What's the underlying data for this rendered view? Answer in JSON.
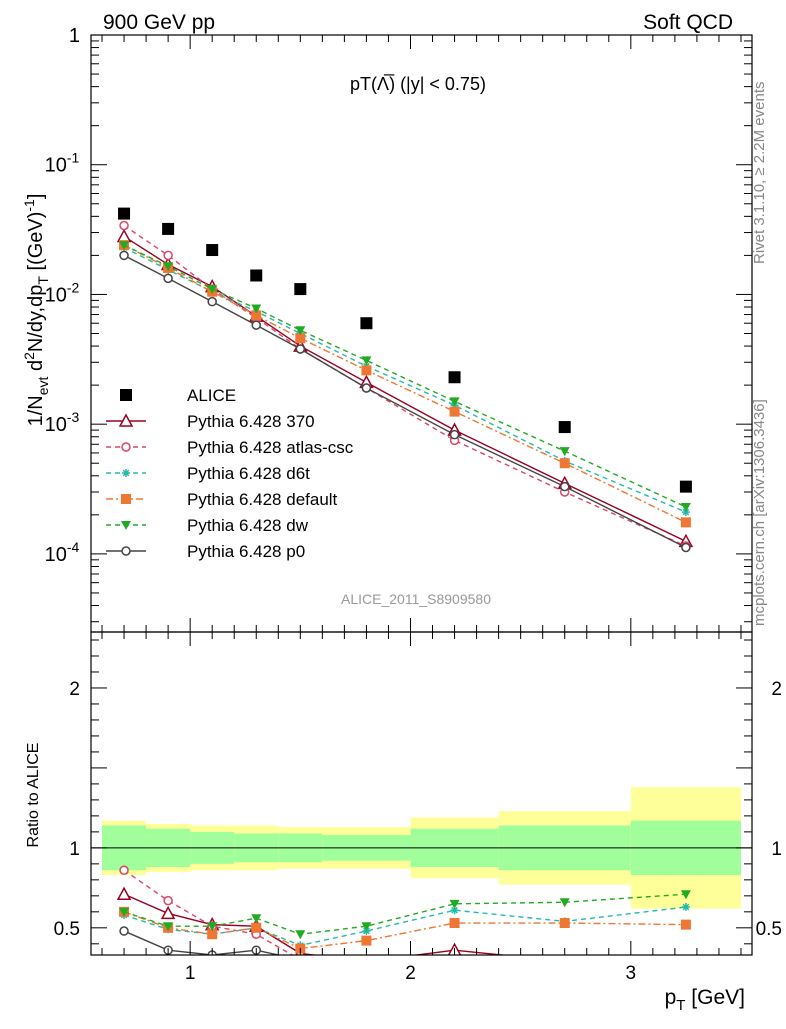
{
  "header": {
    "left": "900 GeV pp",
    "right": "Soft QCD"
  },
  "side_labels": {
    "rivet": "Rivet 3.1.10, ≥ 2.2M events",
    "mcplots": "mcplots.cern.ch [arXiv:1306.3436]"
  },
  "analysis_tag": "ALICE_2011_S8909580",
  "chart_data": [
    {
      "type": "scatter",
      "panel": "main",
      "title": "pT(Λ̅) (|y| < 0.75)",
      "ylabel": "1/N_evt d²N/dy,dp_T [(GeV)⁻¹]",
      "y_scale": "log",
      "ylim": [
        2.5e-05,
        1
      ],
      "xlim": [
        0.55,
        3.55
      ],
      "y_ticks": [
        "1",
        "10^-1",
        "10^-2",
        "10^-3",
        "10^-4"
      ],
      "legend_position": "bottom-left",
      "x": [
        0.7,
        0.9,
        1.1,
        1.3,
        1.5,
        1.8,
        2.2,
        2.7,
        3.25
      ],
      "series": [
        {
          "name": "ALICE",
          "color": "#000000",
          "marker": "square-filled",
          "line": "none",
          "values": [
            0.042,
            0.032,
            0.022,
            0.014,
            0.011,
            0.006,
            0.0023,
            0.00095,
            0.00033
          ]
        },
        {
          "name": "Pythia 6.428 370",
          "color": "#990022",
          "marker": "triangle-open",
          "line": "solid",
          "values": [
            0.028,
            0.017,
            0.0115,
            0.0068,
            0.004,
            0.0021,
            0.0009,
            0.00035,
            0.000125
          ]
        },
        {
          "name": "Pythia 6.428 atlas-csc",
          "color": "#dd4466",
          "marker": "circle-open",
          "line": "dashed",
          "values": [
            0.034,
            0.02,
            0.011,
            0.0066,
            0.0038,
            0.0019,
            0.00075,
            0.0003,
            0.000115
          ]
        },
        {
          "name": "Pythia 6.428 d6t",
          "color": "#22bbaa",
          "marker": "star",
          "line": "dashed",
          "values": [
            0.023,
            0.0155,
            0.0105,
            0.0074,
            0.005,
            0.0028,
            0.0014,
            0.00052,
            0.00021
          ]
        },
        {
          "name": "Pythia 6.428 default",
          "color": "#ee7733",
          "marker": "square-filled",
          "line": "dashdot",
          "values": [
            0.024,
            0.016,
            0.0105,
            0.0069,
            0.0046,
            0.0026,
            0.00125,
            0.0005,
            0.000175
          ]
        },
        {
          "name": "Pythia 6.428 dw",
          "color": "#22aa22",
          "marker": "triangle-down-filled",
          "line": "dashed",
          "values": [
            0.024,
            0.0165,
            0.011,
            0.0078,
            0.0053,
            0.0031,
            0.0015,
            0.00062,
            0.00023
          ]
        },
        {
          "name": "Pythia 6.428 p0",
          "color": "#444444",
          "marker": "circle-open",
          "line": "solid",
          "values": [
            0.02,
            0.0133,
            0.0088,
            0.0058,
            0.0038,
            0.0019,
            0.00083,
            0.00033,
            0.000112
          ]
        }
      ]
    },
    {
      "type": "line",
      "panel": "ratio",
      "ylabel": "Ratio to ALICE",
      "xlabel": "p_T [GeV]",
      "ylim": [
        0.33,
        2.35
      ],
      "xlim": [
        0.55,
        3.55
      ],
      "x_ticks": [
        "1",
        "2",
        "3"
      ],
      "y_ticks": [
        "0.5",
        "1",
        "2"
      ],
      "reference": 1,
      "bins": [
        0.6,
        0.8,
        1.0,
        1.2,
        1.4,
        1.6,
        2.0,
        2.4,
        3.0,
        3.5
      ],
      "band_inner": [
        0.14,
        0.12,
        0.1,
        0.09,
        0.09,
        0.08,
        0.12,
        0.14,
        0.17
      ],
      "band_outer": [
        0.17,
        0.15,
        0.14,
        0.14,
        0.13,
        0.13,
        0.19,
        0.23,
        0.38
      ],
      "band_colors": {
        "inner": "#a0ff9a",
        "outer": "#ffff99"
      },
      "x": [
        0.7,
        0.9,
        1.1,
        1.3,
        1.5,
        1.8,
        2.2,
        2.7,
        3.25
      ],
      "series": [
        {
          "name": "Pythia 6.428 370",
          "color": "#990022",
          "marker": "triangle-open",
          "line": "solid",
          "values": [
            0.71,
            0.59,
            0.52,
            0.51,
            0.34,
            0.29,
            0.36,
            0.29,
            0.28
          ]
        },
        {
          "name": "Pythia 6.428 atlas-csc",
          "color": "#dd4466",
          "marker": "circle-open",
          "line": "dashed",
          "values": [
            0.86,
            0.67,
            0.51,
            0.46,
            0.3,
            0.28,
            0.3,
            0.28,
            0.27
          ]
        },
        {
          "name": "Pythia 6.428 d6t",
          "color": "#22bbaa",
          "marker": "star",
          "line": "dashed",
          "values": [
            0.58,
            0.49,
            0.46,
            0.5,
            0.39,
            0.48,
            0.61,
            0.54,
            0.63
          ]
        },
        {
          "name": "Pythia 6.428 default",
          "color": "#ee7733",
          "marker": "square-filled",
          "line": "dashdot",
          "values": [
            0.6,
            0.5,
            0.46,
            0.5,
            0.37,
            0.42,
            0.53,
            0.53,
            0.52
          ]
        },
        {
          "name": "Pythia 6.428 dw",
          "color": "#22aa22",
          "marker": "triangle-down-filled",
          "line": "dashed",
          "values": [
            0.6,
            0.51,
            0.51,
            0.56,
            0.46,
            0.51,
            0.65,
            0.66,
            0.71
          ]
        },
        {
          "name": "Pythia 6.428 p0",
          "color": "#444444",
          "marker": "circle-open",
          "line": "solid",
          "values": [
            0.48,
            0.36,
            0.33,
            0.36,
            0.3,
            0.28,
            0.3,
            0.28,
            0.28
          ]
        }
      ]
    }
  ]
}
